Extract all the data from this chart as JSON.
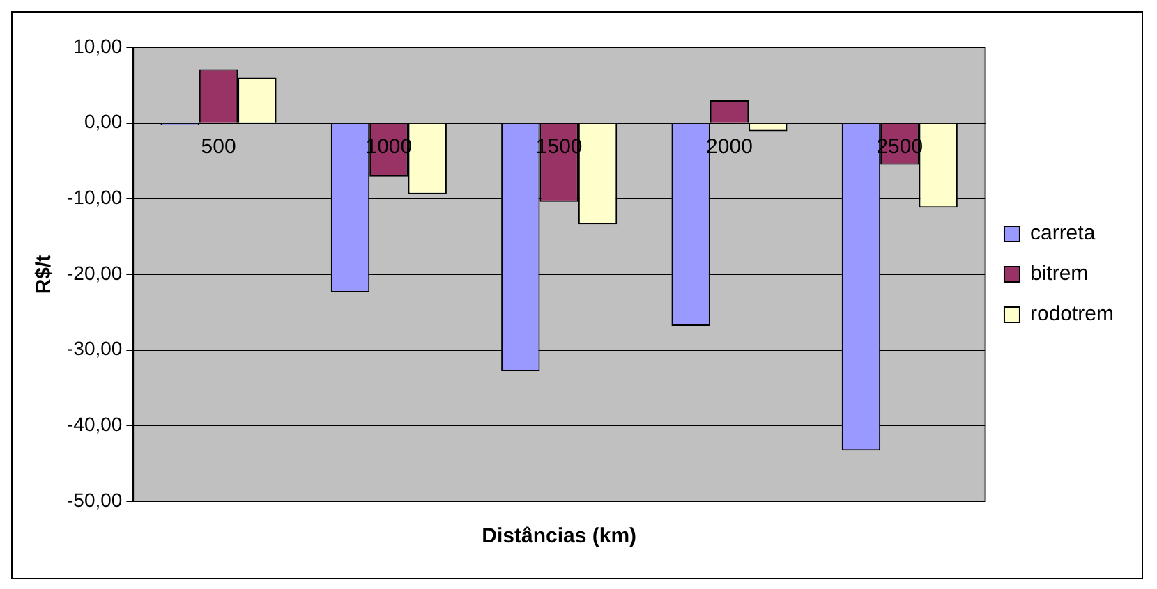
{
  "chart_data": {
    "type": "bar",
    "xlabel": "Distâncias (km)",
    "ylabel": "R$/t",
    "categories": [
      "500",
      "1000",
      "1500",
      "2000",
      "2500"
    ],
    "series": [
      {
        "name": "carreta",
        "color": "#9999ff",
        "values": [
          -0.3,
          -22.4,
          -32.8,
          -26.8,
          -43.3
        ]
      },
      {
        "name": "bitrem",
        "color": "#993366",
        "values": [
          7.1,
          -7.1,
          -10.4,
          3.0,
          -5.5
        ]
      },
      {
        "name": "rodotrem",
        "color": "#ffffcc",
        "values": [
          6.0,
          -9.4,
          -13.4,
          -1.1,
          -11.2
        ]
      }
    ],
    "ylim": [
      -50,
      10
    ],
    "yticks": [
      {
        "value": -50,
        "label": "-50,00"
      },
      {
        "value": -40,
        "label": "-40,00"
      },
      {
        "value": -30,
        "label": "-30,00"
      },
      {
        "value": -20,
        "label": "-20,00"
      },
      {
        "value": -10,
        "label": "-10,00"
      },
      {
        "value": 0,
        "label": "0,00"
      },
      {
        "value": 10,
        "label": "10,00"
      }
    ],
    "grid": "y",
    "legend": "right"
  }
}
